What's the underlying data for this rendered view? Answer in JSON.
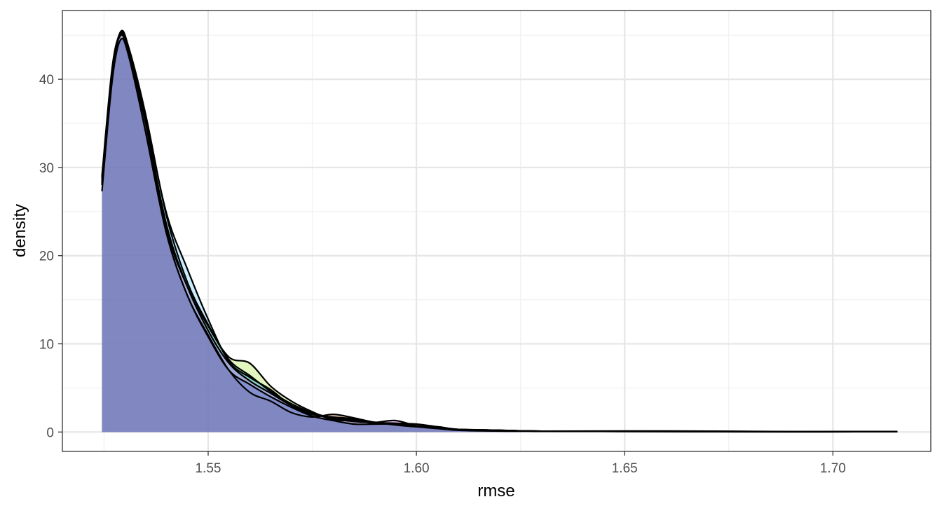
{
  "chart_data": {
    "type": "area",
    "title": "",
    "xlabel": "rmse",
    "ylabel": "density",
    "xlim": [
      1.515,
      1.7235
    ],
    "ylim": [
      -2.2,
      47.8
    ],
    "x_ticks": [
      1.55,
      1.6,
      1.65,
      1.7
    ],
    "x_tick_labels": [
      "1.55",
      "1.60",
      "1.65",
      "1.70"
    ],
    "x_minor_ticks": [
      1.525,
      1.575,
      1.625,
      1.675
    ],
    "y_ticks": [
      0,
      10,
      20,
      30,
      40
    ],
    "y_tick_labels": [
      "0",
      "10",
      "20",
      "30",
      "40"
    ],
    "y_minor_ticks": [
      5,
      15,
      25,
      35,
      45
    ],
    "grid": true,
    "legend": "none",
    "series": [
      {
        "color": "#D55E00",
        "x": [
          1.5245,
          1.527,
          1.529,
          1.531,
          1.535,
          1.54,
          1.545,
          1.55,
          1.555,
          1.56,
          1.565,
          1.57,
          1.575,
          1.58,
          1.585,
          1.59,
          1.595,
          1.6,
          1.605,
          1.61,
          1.62,
          1.63,
          1.66,
          1.69,
          1.7155
        ],
        "y": [
          28.0,
          40.5,
          45.3,
          43.0,
          34.0,
          22.5,
          15.5,
          11.0,
          7.0,
          4.5,
          3.5,
          2.2,
          1.7,
          2.0,
          1.6,
          1.1,
          1.0,
          0.9,
          0.6,
          0.3,
          0.2,
          0.1,
          0.05,
          0.02,
          0.05
        ]
      },
      {
        "color": "#A6E22E",
        "x": [
          1.5245,
          1.527,
          1.529,
          1.531,
          1.535,
          1.54,
          1.545,
          1.55,
          1.555,
          1.56,
          1.565,
          1.57,
          1.575,
          1.58,
          1.585,
          1.59,
          1.595,
          1.6,
          1.605,
          1.61,
          1.62,
          1.63,
          1.66,
          1.69,
          1.7155
        ],
        "y": [
          28.5,
          41.0,
          45.0,
          43.2,
          35.0,
          23.0,
          16.5,
          12.0,
          8.5,
          7.8,
          5.2,
          3.5,
          2.3,
          1.4,
          1.3,
          1.0,
          0.9,
          0.7,
          0.5,
          0.3,
          0.2,
          0.1,
          0.08,
          0.03,
          0.06
        ]
      },
      {
        "color": "#00C0A0",
        "x": [
          1.5245,
          1.527,
          1.529,
          1.531,
          1.535,
          1.54,
          1.545,
          1.55,
          1.555,
          1.56,
          1.565,
          1.57,
          1.575,
          1.58,
          1.585,
          1.59,
          1.595,
          1.6,
          1.605,
          1.61,
          1.62,
          1.63,
          1.66,
          1.69,
          1.7155
        ],
        "y": [
          28.2,
          40.8,
          45.4,
          43.5,
          36.0,
          24.5,
          17.0,
          12.2,
          8.2,
          6.4,
          4.6,
          3.2,
          2.2,
          1.6,
          1.4,
          1.0,
          0.9,
          0.7,
          0.5,
          0.3,
          0.2,
          0.1,
          0.1,
          0.04,
          0.06
        ]
      },
      {
        "color": "#4FC3F7",
        "x": [
          1.5245,
          1.527,
          1.529,
          1.531,
          1.535,
          1.54,
          1.545,
          1.55,
          1.555,
          1.56,
          1.565,
          1.57,
          1.575,
          1.58,
          1.585,
          1.59,
          1.595,
          1.6,
          1.605,
          1.61,
          1.62,
          1.63,
          1.66,
          1.69,
          1.7155
        ],
        "y": [
          28.8,
          41.2,
          45.2,
          43.0,
          35.5,
          24.8,
          18.5,
          12.8,
          8.0,
          6.2,
          4.8,
          3.0,
          2.0,
          1.7,
          1.5,
          1.1,
          0.8,
          0.6,
          0.6,
          0.3,
          0.2,
          0.1,
          0.12,
          0.05,
          0.06
        ]
      },
      {
        "color": "#E040FB",
        "x": [
          1.5245,
          1.527,
          1.529,
          1.531,
          1.535,
          1.54,
          1.545,
          1.55,
          1.555,
          1.56,
          1.565,
          1.57,
          1.575,
          1.58,
          1.585,
          1.59,
          1.595,
          1.6,
          1.605,
          1.61,
          1.62,
          1.63,
          1.66,
          1.69,
          1.7155
        ],
        "y": [
          29.0,
          41.5,
          45.0,
          42.8,
          35.0,
          23.5,
          16.5,
          11.5,
          7.8,
          5.8,
          4.4,
          3.0,
          2.1,
          1.5,
          1.2,
          1.1,
          1.3,
          0.7,
          0.4,
          0.3,
          0.2,
          0.1,
          0.08,
          0.03,
          0.05
        ]
      },
      {
        "color": "#3F51B5",
        "x": [
          1.5245,
          1.527,
          1.529,
          1.531,
          1.535,
          1.54,
          1.545,
          1.55,
          1.555,
          1.56,
          1.565,
          1.57,
          1.575,
          1.58,
          1.585,
          1.59,
          1.595,
          1.6,
          1.605,
          1.61,
          1.62,
          1.63,
          1.66,
          1.69,
          1.7155
        ],
        "y": [
          27.3,
          40.0,
          44.5,
          42.5,
          34.0,
          22.5,
          15.5,
          10.8,
          7.0,
          5.4,
          4.0,
          2.8,
          1.8,
          1.3,
          0.9,
          0.9,
          0.9,
          0.6,
          0.4,
          0.2,
          0.1,
          0.1,
          0.05,
          0.02,
          0.05
        ]
      }
    ]
  }
}
